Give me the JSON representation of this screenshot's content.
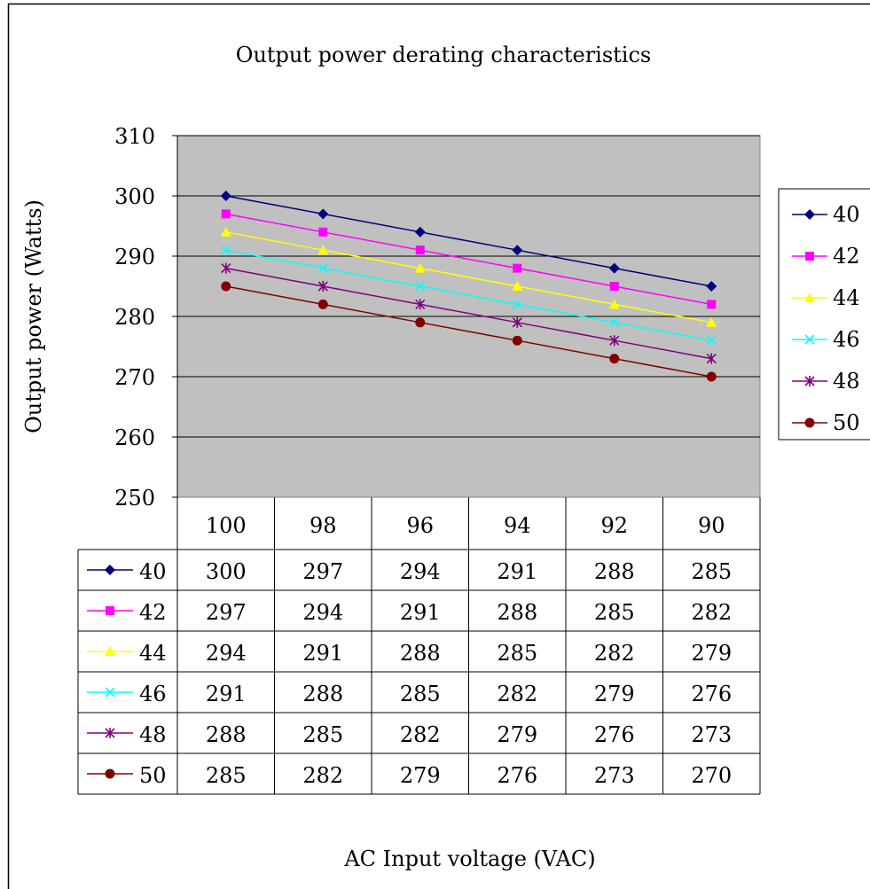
{
  "chart_data": {
    "type": "line",
    "title": "Output power derating characteristics",
    "xlabel": "AC Input voltage (VAC)",
    "ylabel": "Output power (Watts)",
    "categories": [
      "100",
      "98",
      "96",
      "94",
      "92",
      "90"
    ],
    "ylim": [
      250,
      310
    ],
    "yticks": [
      250,
      260,
      270,
      280,
      290,
      300,
      310
    ],
    "grid": true,
    "legend_position": "right",
    "data_table": true,
    "plot_background": "#C0C0C0",
    "series": [
      {
        "name": "40",
        "values": [
          300,
          297,
          294,
          291,
          288,
          285
        ],
        "color": "#000080",
        "marker": "diamond"
      },
      {
        "name": "42",
        "values": [
          297,
          294,
          291,
          288,
          285,
          282
        ],
        "color": "#FF00FF",
        "marker": "square"
      },
      {
        "name": "44",
        "values": [
          294,
          291,
          288,
          285,
          282,
          279
        ],
        "color": "#FFFF00",
        "marker": "triangle"
      },
      {
        "name": "46",
        "values": [
          291,
          288,
          285,
          282,
          279,
          276
        ],
        "color": "#00FFFF",
        "marker": "x"
      },
      {
        "name": "48",
        "values": [
          288,
          285,
          282,
          279,
          276,
          273
        ],
        "color": "#800080",
        "marker": "asterisk"
      },
      {
        "name": "50",
        "values": [
          285,
          282,
          279,
          276,
          273,
          270
        ],
        "color": "#800000",
        "marker": "circle"
      }
    ]
  }
}
